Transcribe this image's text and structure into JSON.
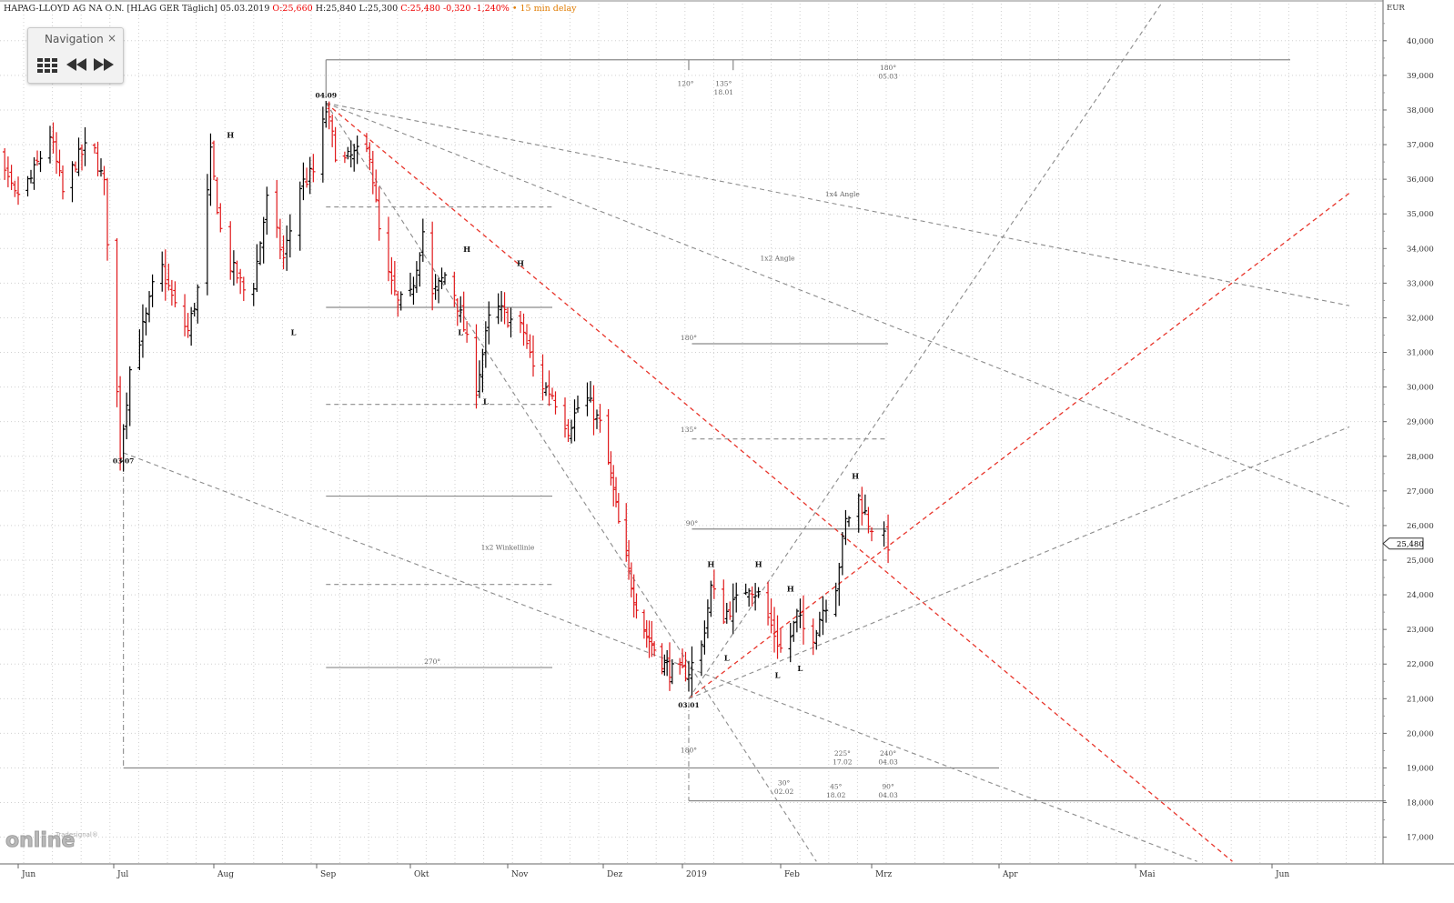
{
  "header": {
    "instrument": "HAPAG-LLOYD AG NA O.N. [HLAG GER Täglich] 05.03.2019",
    "open": "O:25,660",
    "high": "H:25,840",
    "low": "L:25,300",
    "close": "C:25,480 -0,320 -1,240%",
    "delay": "• 15 min delay"
  },
  "navigation": {
    "title": "Navigation",
    "close": "×",
    "buttons": [
      "grid-icon",
      "rewind-icon",
      "fast-forward-icon"
    ]
  },
  "logo": {
    "text": "online",
    "small": "Tradesignal®"
  },
  "colors": {
    "up_bar": "#000000",
    "down_bar": "#e0191b",
    "red_line": "#e8352b",
    "gray_line": "#8c8c8c",
    "grid": "#d0d0d0"
  },
  "chart_data": {
    "type": "bar",
    "title": "HAPAG-LLOYD AG NA O.N. [HLAG GER Täglich] 05.03.2019",
    "currency_label": "EUR",
    "ylim": [
      16.1,
      41.1
    ],
    "y_ticks": [
      "17,000",
      "18,000",
      "19,000",
      "20,000",
      "21,000",
      "22,000",
      "23,000",
      "24,000",
      "25,000",
      "26,000",
      "27,000",
      "28,000",
      "29,000",
      "30,000",
      "31,000",
      "32,000",
      "33,000",
      "34,000",
      "35,000",
      "36,000",
      "37,000",
      "38,000",
      "39,000",
      "40,000"
    ],
    "x_labels": [
      {
        "label": "Jun",
        "date": "2018-06-01"
      },
      {
        "label": "Jul",
        "date": "2018-07-01"
      },
      {
        "label": "Aug",
        "date": "2018-08-01"
      },
      {
        "label": "Sep",
        "date": "2018-09-01"
      },
      {
        "label": "Okt",
        "date": "2018-10-01"
      },
      {
        "label": "Nov",
        "date": "2018-11-01"
      },
      {
        "label": "Dez",
        "date": "2018-12-01"
      },
      {
        "label": "2019",
        "date": "2019-01-01"
      },
      {
        "label": "Feb",
        "date": "2019-02-01"
      },
      {
        "label": "Mrz",
        "date": "2019-03-01"
      },
      {
        "label": "Apr",
        "date": "2019-04-01"
      },
      {
        "label": "Mai",
        "date": "2019-05-01"
      },
      {
        "label": "Jun",
        "date": "2019-06-01"
      }
    ],
    "last_price": "25,480",
    "price_path": [
      [
        "2018-05-21",
        37.4
      ],
      [
        "2018-05-25",
        36.6
      ],
      [
        "2018-05-31",
        35.5
      ],
      [
        "2018-06-05",
        36.0
      ],
      [
        "2018-06-11",
        37.3
      ],
      [
        "2018-06-15",
        35.6
      ],
      [
        "2018-06-19",
        36.5
      ],
      [
        "2018-06-24",
        37.1
      ],
      [
        "2018-06-28",
        35.8
      ],
      [
        "2018-07-02",
        29.8
      ],
      [
        "2018-07-03",
        28.1
      ],
      [
        "2018-07-06",
        30.5
      ],
      [
        "2018-07-11",
        32.0
      ],
      [
        "2018-07-15",
        33.7
      ],
      [
        "2018-07-20",
        32.3
      ],
      [
        "2018-07-24",
        31.6
      ],
      [
        "2018-07-28",
        33.2
      ],
      [
        "2018-07-31",
        36.7
      ],
      [
        "2018-08-04",
        33.8
      ],
      [
        "2018-08-08",
        33.2
      ],
      [
        "2018-08-12",
        32.4
      ],
      [
        "2018-08-17",
        35.4
      ],
      [
        "2018-08-22",
        33.7
      ],
      [
        "2018-08-27",
        35.8
      ],
      [
        "2018-08-31",
        36.2
      ],
      [
        "2018-09-04",
        38.0
      ],
      [
        "2018-09-08",
        36.4
      ],
      [
        "2018-09-13",
        36.7
      ],
      [
        "2018-09-18",
        36.8
      ],
      [
        "2018-09-22",
        33.7
      ],
      [
        "2018-09-27",
        32.4
      ],
      [
        "2018-10-01",
        32.6
      ],
      [
        "2018-10-05",
        34.5
      ],
      [
        "2018-10-08",
        32.6
      ],
      [
        "2018-10-13",
        33.4
      ],
      [
        "2018-10-18",
        31.7
      ],
      [
        "2018-10-22",
        30.0
      ],
      [
        "2018-10-27",
        32.4
      ],
      [
        "2018-11-01",
        32.0
      ],
      [
        "2018-11-06",
        31.6
      ],
      [
        "2018-11-10",
        30.2
      ],
      [
        "2018-11-15",
        29.8
      ],
      [
        "2018-11-20",
        28.8
      ],
      [
        "2018-11-25",
        29.8
      ],
      [
        "2018-11-30",
        28.9
      ],
      [
        "2018-12-04",
        27.4
      ],
      [
        "2018-12-08",
        25.6
      ],
      [
        "2018-12-13",
        24.0
      ],
      [
        "2018-12-18",
        22.8
      ],
      [
        "2018-12-24",
        22.1
      ],
      [
        "2018-12-29",
        21.7
      ],
      [
        "2019-01-03",
        21.8
      ],
      [
        "2019-01-07",
        22.5
      ],
      [
        "2019-01-10",
        24.2
      ],
      [
        "2019-01-14",
        23.4
      ],
      [
        "2019-01-18",
        23.8
      ],
      [
        "2019-01-22",
        24.3
      ],
      [
        "2019-01-25",
        24.0
      ],
      [
        "2019-01-29",
        23.1
      ],
      [
        "2019-02-02",
        22.2
      ],
      [
        "2019-02-06",
        23.4
      ],
      [
        "2019-02-10",
        22.6
      ],
      [
        "2019-02-14",
        23.6
      ],
      [
        "2019-02-18",
        24.3
      ],
      [
        "2019-02-21",
        26.1
      ],
      [
        "2019-02-25",
        26.8
      ],
      [
        "2019-02-28",
        26.1
      ],
      [
        "2019-03-05",
        25.48
      ]
    ],
    "annotations": [
      {
        "text": "04.09",
        "date": "2018-09-04",
        "y": 38.35,
        "weight": "bold"
      },
      {
        "text": "03.07",
        "date": "2018-07-04",
        "y": 27.8,
        "weight": "bold"
      },
      {
        "text": "03.01",
        "date": "2019-01-03",
        "y": 20.75,
        "weight": "bold"
      },
      {
        "text": "H",
        "date": "2018-08-06",
        "y": 37.2
      },
      {
        "text": "L",
        "date": "2018-08-25",
        "y": 31.5
      },
      {
        "text": "H",
        "date": "2018-10-19",
        "y": 33.9
      },
      {
        "text": "L",
        "date": "2018-10-17",
        "y": 31.5
      },
      {
        "text": "L",
        "date": "2018-10-25",
        "y": 29.5
      },
      {
        "text": "H",
        "date": "2018-11-05",
        "y": 33.5
      },
      {
        "text": "H",
        "date": "2019-01-10",
        "y": 24.8
      },
      {
        "text": "L",
        "date": "2019-01-15",
        "y": 22.1
      },
      {
        "text": "H",
        "date": "2019-01-25",
        "y": 24.8
      },
      {
        "text": "H",
        "date": "2019-02-04",
        "y": 24.1
      },
      {
        "text": "L",
        "date": "2019-01-31",
        "y": 21.6
      },
      {
        "text": "L",
        "date": "2019-02-07",
        "y": 21.8
      },
      {
        "text": "H",
        "date": "2019-02-24",
        "y": 27.35
      },
      {
        "text": "1x4 Angle",
        "date": "2019-02-20",
        "y": 35.5
      },
      {
        "text": "1x2 Angle",
        "date": "2019-01-31",
        "y": 33.65
      },
      {
        "text": "1x2 Winkellinie",
        "date": "2018-11-01",
        "y": 25.3
      },
      {
        "text": "180°",
        "date": "2019-01-03",
        "y": 31.35
      },
      {
        "text": "135°",
        "date": "2019-01-03",
        "y": 28.7
      },
      {
        "text": "90°",
        "date": "2019-01-04",
        "y": 26.0
      },
      {
        "text": "270°",
        "date": "2018-10-08",
        "y": 22.0
      },
      {
        "text": "120°",
        "date": "2019-01-02",
        "y": 38.7
      },
      {
        "text": "135°",
        "date": "2019-01-14",
        "y": 38.7
      },
      {
        "text": "18.01",
        "date": "2019-01-14",
        "y": 38.45
      },
      {
        "text": "180°",
        "date": "2019-03-05",
        "y": 39.15
      },
      {
        "text": "05.03",
        "date": "2019-03-05",
        "y": 38.9
      },
      {
        "text": "180°",
        "date": "2019-01-03",
        "y": 19.45
      },
      {
        "text": "225°",
        "date": "2019-02-20",
        "y": 19.35
      },
      {
        "text": "17.02",
        "date": "2019-02-20",
        "y": 19.1
      },
      {
        "text": "240°",
        "date": "2019-03-05",
        "y": 19.35
      },
      {
        "text": "04.03",
        "date": "2019-03-05",
        "y": 19.1
      },
      {
        "text": "30°",
        "date": "2019-02-02",
        "y": 18.5
      },
      {
        "text": "02.02",
        "date": "2019-02-02",
        "y": 18.25
      },
      {
        "text": "45°",
        "date": "2019-02-18",
        "y": 18.4
      },
      {
        "text": "18.02",
        "date": "2019-02-18",
        "y": 18.15
      },
      {
        "text": "90°",
        "date": "2019-03-05",
        "y": 18.4
      },
      {
        "text": "04.03",
        "date": "2019-03-05",
        "y": 18.15
      }
    ],
    "lines": [
      {
        "style": "solid-gray",
        "from": [
          "2018-09-04",
          39.45
        ],
        "to": [
          "2019-06-05",
          39.45
        ]
      },
      {
        "style": "solid-gray",
        "from": [
          "2018-09-04",
          32.3
        ],
        "to": [
          "2018-11-15",
          32.3
        ]
      },
      {
        "style": "dash-gray",
        "from": [
          "2018-09-04",
          35.2
        ],
        "to": [
          "2018-11-15",
          35.2
        ]
      },
      {
        "style": "dash-gray",
        "from": [
          "2018-09-04",
          29.5
        ],
        "to": [
          "2018-11-15",
          29.5
        ]
      },
      {
        "style": "solid-gray",
        "from": [
          "2018-09-04",
          26.85
        ],
        "to": [
          "2018-11-15",
          26.85
        ]
      },
      {
        "style": "dash-gray",
        "from": [
          "2018-09-04",
          24.3
        ],
        "to": [
          "2018-11-15",
          24.3
        ]
      },
      {
        "style": "solid-gray",
        "from": [
          "2018-09-04",
          21.9
        ],
        "to": [
          "2018-11-15",
          21.9
        ]
      },
      {
        "style": "solid-gray",
        "from": [
          "2019-01-04",
          31.25
        ],
        "to": [
          "2019-03-05",
          31.25
        ]
      },
      {
        "style": "dash-gray",
        "from": [
          "2019-01-04",
          28.5
        ],
        "to": [
          "2019-03-05",
          28.5
        ]
      },
      {
        "style": "solid-gray",
        "from": [
          "2019-01-04",
          25.9
        ],
        "to": [
          "2019-03-05",
          25.9
        ]
      },
      {
        "style": "solid-gray",
        "from": [
          "2018-07-04",
          19.0
        ],
        "to": [
          "2019-04-01",
          19.0
        ]
      },
      {
        "style": "solid-gray",
        "from": [
          "2019-01-03",
          18.05
        ],
        "to": [
          "2019-06-26",
          18.05
        ]
      },
      {
        "style": "dashdot-gray",
        "from": [
          "2018-07-04",
          28.1
        ],
        "to": [
          "2018-07-04",
          19.0
        ]
      },
      {
        "style": "dashdot-gray",
        "from": [
          "2019-01-03",
          20.9
        ],
        "to": [
          "2019-01-03",
          18.05
        ]
      },
      {
        "style": "solid-gray",
        "from": [
          "2018-09-04",
          39.45
        ],
        "to": [
          "2018-09-04",
          38.35
        ]
      },
      {
        "style": "solid-gray",
        "from": [
          "2019-01-03",
          39.45
        ],
        "to": [
          "2019-01-03",
          39.15
        ]
      },
      {
        "style": "solid-gray",
        "from": [
          "2019-01-17",
          39.45
        ],
        "to": [
          "2019-01-17",
          39.15
        ]
      },
      {
        "style": "dash-red",
        "from": [
          "2018-09-04",
          38.2
        ],
        "to": [
          "2019-05-23",
          16.3
        ]
      },
      {
        "style": "dash-red",
        "from": [
          "2019-01-03",
          21.0
        ],
        "to": [
          "2019-06-18",
          35.6
        ]
      },
      {
        "style": "dash-gray",
        "from": [
          "2018-09-04",
          38.2
        ],
        "to": [
          "2019-06-18",
          32.35
        ]
      },
      {
        "style": "dash-gray",
        "from": [
          "2018-09-04",
          38.2
        ],
        "to": [
          "2019-06-18",
          26.55
        ]
      },
      {
        "style": "dash-gray",
        "from": [
          "2018-09-04",
          38.2
        ],
        "to": [
          "2019-02-12",
          16.3
        ]
      },
      {
        "style": "dash-gray",
        "from": [
          "2018-07-04",
          28.1
        ],
        "to": [
          "2019-05-15",
          16.3
        ]
      },
      {
        "style": "dash-gray",
        "from": [
          "2019-01-03",
          21.0
        ],
        "to": [
          "2019-05-07",
          41.1
        ]
      },
      {
        "style": "dash-gray",
        "from": [
          "2019-01-03",
          21.0
        ],
        "to": [
          "2019-06-18",
          28.85
        ]
      }
    ]
  }
}
